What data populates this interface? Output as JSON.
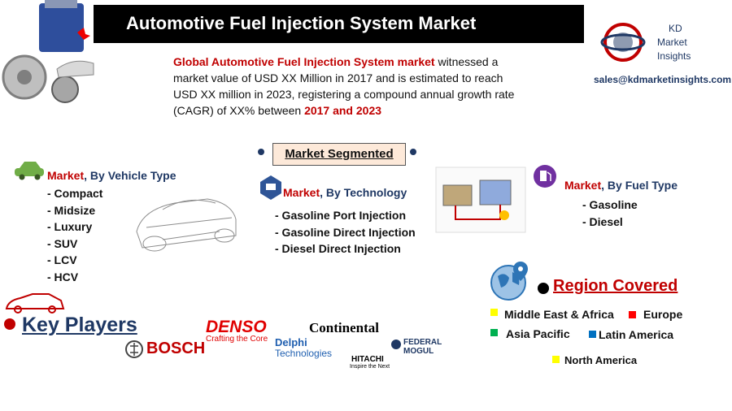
{
  "header": {
    "title": "Automotive Fuel Injection System Market"
  },
  "brand": {
    "line1": "KD",
    "line2": "Market",
    "line3": "Insights",
    "email": "sales@kdmarketinsights.com"
  },
  "intro": {
    "highlight1": "Global Automotive Fuel Injection System market",
    "text": " witnessed a market value of USD XX Million in 2017 and is estimated to reach USD XX million in 2023, registering a compound annual growth rate (CAGR) of XX% between ",
    "highlight2": "2017 and 2023"
  },
  "segmented": {
    "title": "Market Segmented"
  },
  "segments": [
    {
      "lead": "Market",
      "title": ", By Vehicle Type",
      "items": [
        "- Compact",
        "- Midsize",
        "- Luxury",
        "- SUV",
        "- LCV",
        "- HCV"
      ]
    },
    {
      "lead": "Market",
      "title": ", By Technology",
      "items": [
        "- Gasoline Port Injection",
        "- Gasoline Direct Injection",
        "- Diesel Direct Injection"
      ]
    },
    {
      "lead": "Market",
      "title": ", By Fuel Type",
      "items": [
        "- Gasoline",
        "- Diesel"
      ]
    }
  ],
  "region": {
    "title": "Region Covered",
    "items": [
      {
        "name": "Middle East & Africa",
        "color": "#ffff00"
      },
      {
        "name": "Europe",
        "color": "#ff0000"
      },
      {
        "name": "Asia Pacific",
        "color": "#00b050"
      },
      {
        "name": "Latin America",
        "color": "#0070c0"
      },
      {
        "name": "North America",
        "color": "#ffff00"
      }
    ]
  },
  "players": {
    "title": "Key Players",
    "bosch": "BOSCH",
    "denso": "DENSO",
    "denso_tag": "Crafting the Core",
    "continental": "Continental",
    "delphi": "Delphi",
    "delphi_sub": "Technologies",
    "hitachi": "HITACHI",
    "hitachi_tag": "Inspire the Next",
    "federal": "FEDERAL",
    "mogul": "MOGUL"
  }
}
